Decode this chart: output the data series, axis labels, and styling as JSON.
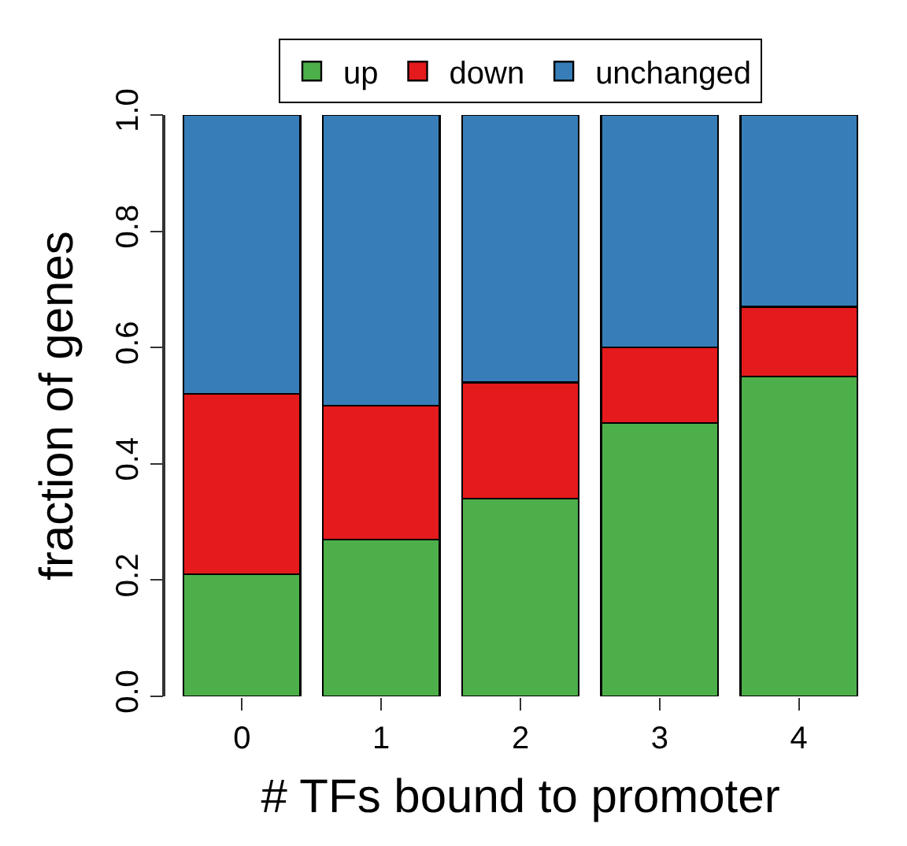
{
  "chart_data": {
    "type": "bar",
    "stacked": true,
    "xlabel": "# TFs bound to promoter",
    "ylabel": "fraction of genes",
    "categories": [
      "0",
      "1",
      "2",
      "3",
      "4"
    ],
    "series": [
      {
        "name": "up",
        "color": "#4daf4a",
        "values": [
          0.21,
          0.27,
          0.34,
          0.47,
          0.55
        ]
      },
      {
        "name": "down",
        "color": "#e41a1c",
        "values": [
          0.31,
          0.23,
          0.2,
          0.13,
          0.12
        ]
      },
      {
        "name": "unchanged",
        "color": "#377eb8",
        "values": [
          0.48,
          0.5,
          0.46,
          0.4,
          0.33
        ]
      }
    ],
    "ylim": [
      0,
      1
    ],
    "yticks": [
      {
        "value": 0,
        "label": "0.0"
      },
      {
        "value": 0.2,
        "label": "0.2"
      },
      {
        "value": 0.4,
        "label": "0.4"
      },
      {
        "value": 0.6,
        "label": "0.6"
      },
      {
        "value": 0.8,
        "label": "0.8"
      },
      {
        "value": 1,
        "label": "1.0"
      }
    ],
    "legend": "top"
  }
}
